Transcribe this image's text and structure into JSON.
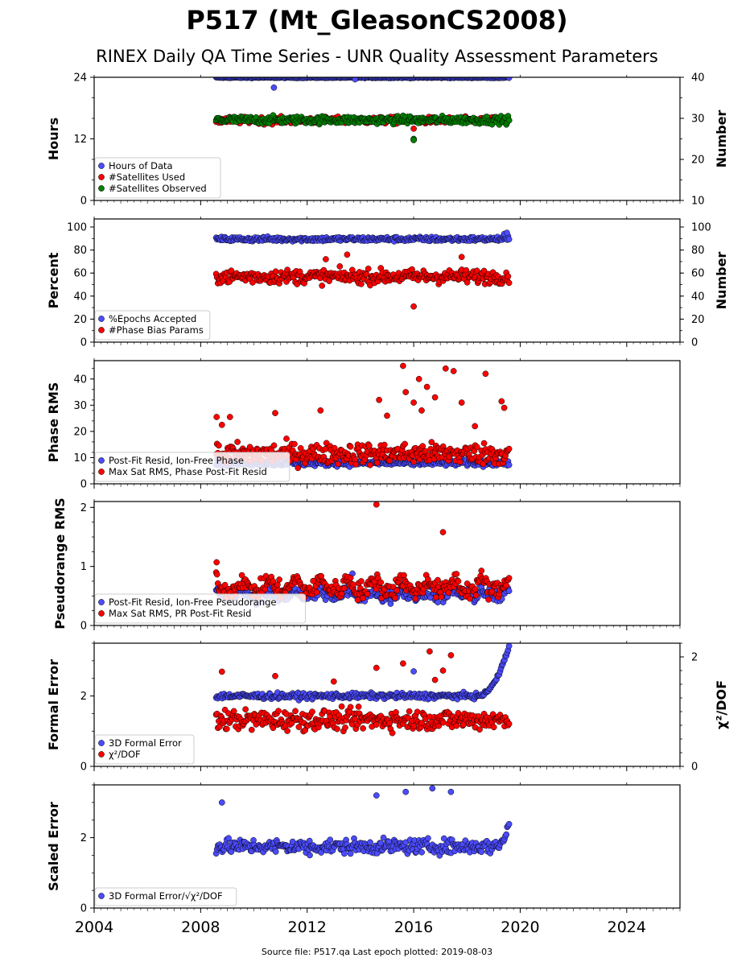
{
  "figure": {
    "title": "P517 (Mt_GleasonCS2008)",
    "subtitle": "RINEX Daily QA Time Series - UNR Quality Assessment Parameters",
    "footer": "Source file: P517.qa Last epoch plotted: 2019-08-03"
  },
  "chart_data": [
    {
      "type": "scatter",
      "ylabel": "Hours",
      "ylim": [
        0,
        24
      ],
      "yticks": [
        "0",
        "12",
        "24"
      ],
      "y2label": "Number",
      "y2lim": [
        10,
        40
      ],
      "y2ticks": [
        "10",
        "20",
        "30",
        "40"
      ],
      "legend_position": "lower-left",
      "series": [
        {
          "name": "Hours of Data",
          "axis": "left",
          "color": "#4b4bff",
          "range": [
            2008.58,
            2019.58
          ],
          "base": 23.95,
          "spread": 0.1,
          "outliers": [
            [
              2010.75,
              22.0
            ],
            [
              2016.0,
              11.8
            ],
            [
              2013.8,
              23.6
            ]
          ]
        },
        {
          "name": "#Satellites Used",
          "axis": "right",
          "color": "#ff0000",
          "range": [
            2008.58,
            2019.58
          ],
          "base": 29.5,
          "spread": 0.8,
          "outliers": [
            [
              2016.0,
              27.5
            ],
            [
              2009.9,
              30.0
            ]
          ]
        },
        {
          "name": "#Satellites Observed",
          "axis": "right",
          "color": "#008000",
          "range": [
            2008.58,
            2019.58
          ],
          "base": 29.6,
          "spread": 0.9,
          "outliers": [
            [
              2016.0,
              25.0
            ],
            [
              2016.0,
              24.7
            ]
          ]
        }
      ]
    },
    {
      "type": "scatter",
      "ylabel": "Percent",
      "ylim": [
        0,
        107
      ],
      "yticks": [
        "0",
        "20",
        "40",
        "60",
        "80",
        "100"
      ],
      "y2label": "Number",
      "y2lim": [
        0,
        107
      ],
      "y2ticks": [
        "0",
        "20",
        "40",
        "60",
        "80",
        "100"
      ],
      "legend_position": "lower-left",
      "series": [
        {
          "name": "%Epochs Accepted",
          "axis": "left",
          "color": "#4b4bff",
          "range": [
            2008.58,
            2019.58
          ],
          "base": 89.5,
          "spread": 2.0,
          "outliers": [
            [
              2019.4,
              94.0
            ],
            [
              2019.5,
              95.0
            ]
          ]
        },
        {
          "name": "#Phase Bias Params",
          "axis": "right",
          "color": "#ff0000",
          "range": [
            2008.58,
            2019.58
          ],
          "base": 57.0,
          "spread": 6.0,
          "outliers": [
            [
              2016.0,
              31.0
            ],
            [
              2013.5,
              76.0
            ],
            [
              2017.8,
              74.0
            ],
            [
              2012.7,
              72.0
            ]
          ]
        }
      ]
    },
    {
      "type": "scatter",
      "ylabel": "Phase RMS",
      "ylim": [
        0,
        47
      ],
      "yticks": [
        "0",
        "10",
        "20",
        "30",
        "40"
      ],
      "legend_position": "lower-left",
      "series": [
        {
          "name": "Post-Fit Resid, Ion-Free Phase",
          "axis": "left",
          "color": "#4b4bff",
          "range": [
            2008.58,
            2019.58
          ],
          "base": 8.0,
          "spread": 1.2,
          "outliers": []
        },
        {
          "name": "Max Sat RMS, Phase Post-Fit Resid",
          "axis": "left",
          "color": "#ff0000",
          "range": [
            2008.58,
            2019.58
          ],
          "base": 11.5,
          "spread": 4.0,
          "outliers": [
            [
              2015.6,
              45.0
            ],
            [
              2017.2,
              44.0
            ],
            [
              2017.5,
              43.0
            ],
            [
              2018.7,
              42.0
            ],
            [
              2016.2,
              40.0
            ],
            [
              2016.5,
              37.0
            ],
            [
              2016.0,
              31.0
            ],
            [
              2019.3,
              31.5
            ],
            [
              2019.4,
              29.0
            ],
            [
              2014.7,
              32.0
            ],
            [
              2015.7,
              35.0
            ],
            [
              2017.8,
              31.0
            ],
            [
              2016.8,
              33.0
            ],
            [
              2016.3,
              28.0
            ],
            [
              2015.0,
              26.0
            ],
            [
              2008.6,
              25.5
            ],
            [
              2009.1,
              25.5
            ],
            [
              2008.8,
              22.5
            ],
            [
              2010.8,
              27.0
            ],
            [
              2012.5,
              28.0
            ],
            [
              2018.3,
              22.0
            ]
          ]
        }
      ]
    },
    {
      "type": "scatter",
      "ylabel": "Pseudorange RMS",
      "ylim": [
        0,
        2.1
      ],
      "yticks": [
        "0",
        "1",
        "2"
      ],
      "legend_position": "lower-left",
      "series": [
        {
          "name": "Post-Fit Resid, Ion-Free Pseudorange",
          "axis": "left",
          "color": "#4b4bff",
          "range": [
            2008.58,
            2019.58
          ],
          "base": 0.5,
          "spread": 0.12,
          "seasonal": 0.1,
          "outliers": [
            [
              2013.7,
              0.88
            ]
          ]
        },
        {
          "name": "Max Sat RMS, PR Post-Fit Resid",
          "axis": "left",
          "color": "#ff0000",
          "range": [
            2008.58,
            2019.58
          ],
          "base": 0.6,
          "spread": 0.15,
          "seasonal": 0.18,
          "outliers": [
            [
              2014.6,
              2.05
            ],
            [
              2017.1,
              1.58
            ],
            [
              2008.6,
              1.07
            ]
          ]
        }
      ]
    },
    {
      "type": "scatter",
      "ylabel": "Formal Error",
      "ylim": [
        0,
        3.5
      ],
      "yticks": [
        "0",
        "2"
      ],
      "y2label": "χ²/DOF",
      "y2lim": [
        0,
        2.25
      ],
      "y2ticks": [
        "0",
        "2"
      ],
      "legend_position": "lower-left",
      "series": [
        {
          "name": "3D Formal Error",
          "axis": "left",
          "color": "#4b4bff",
          "range": [
            2008.58,
            2019.58
          ],
          "base": 2.0,
          "spread": 0.08,
          "rise": [
            2018.4,
            3.4
          ],
          "outliers": [
            [
              2016.0,
              2.7
            ]
          ]
        },
        {
          "name": "χ²/DOF",
          "axis": "right",
          "color": "#ff0000",
          "range": [
            2008.58,
            2019.58
          ],
          "base": 0.85,
          "spread": 0.18,
          "outliers": [
            [
              2016.6,
              2.1
            ],
            [
              2017.4,
              2.03
            ],
            [
              2014.6,
              1.8
            ],
            [
              2015.6,
              1.88
            ],
            [
              2008.8,
              1.73
            ],
            [
              2010.8,
              1.65
            ],
            [
              2016.8,
              1.58
            ],
            [
              2017.1,
              1.75
            ],
            [
              2013.0,
              1.55
            ]
          ]
        }
      ]
    },
    {
      "type": "scatter",
      "ylabel": "Scaled Error",
      "ylim": [
        0,
        3.5
      ],
      "yticks": [
        "0",
        "2"
      ],
      "legend_position": "lower-left",
      "series": [
        {
          "name": "3D Formal Error/√χ²/DOF",
          "axis": "left",
          "color": "#4b4bff",
          "range": [
            2008.58,
            2019.58
          ],
          "base": 1.75,
          "spread": 0.2,
          "rise": [
            2019.1,
            2.4
          ],
          "outliers": [
            [
              2016.7,
              3.4
            ],
            [
              2015.7,
              3.3
            ],
            [
              2017.4,
              3.3
            ],
            [
              2014.6,
              3.2
            ],
            [
              2008.8,
              3.0
            ],
            [
              2012.1,
              1.5
            ]
          ]
        }
      ]
    }
  ],
  "x_axis": {
    "xlim": [
      2004,
      2026
    ],
    "ticks": [
      "2004",
      "2008",
      "2012",
      "2016",
      "2020",
      "2024"
    ],
    "tick_values": [
      2004,
      2008,
      2012,
      2016,
      2020,
      2024
    ]
  }
}
